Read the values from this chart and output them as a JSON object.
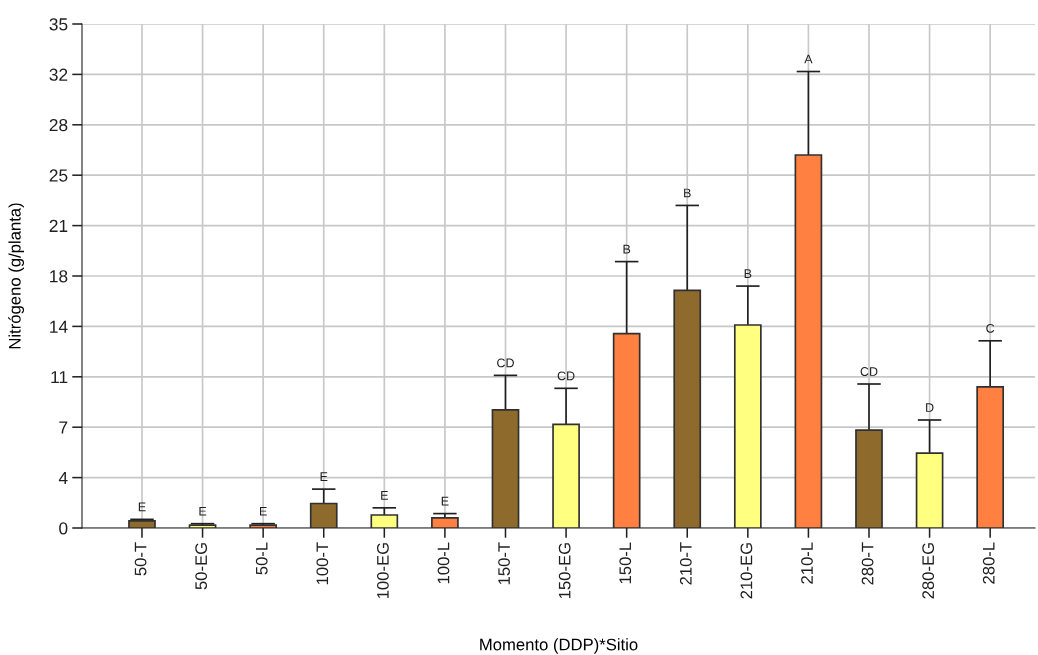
{
  "chart_data": {
    "type": "bar",
    "xlabel": "Momento (DDP)*Sitio",
    "ylabel": "Nitrógeno (g/planta)",
    "categories": [
      "50-T",
      "50-EG",
      "50-L",
      "100-T",
      "100-EG",
      "100-L",
      "150-T",
      "150-EG",
      "150-L",
      "210-T",
      "210-EG",
      "210-L",
      "280-T",
      "280-EG",
      "280-L"
    ],
    "values": [
      0.5,
      0.2,
      0.2,
      1.7,
      0.9,
      0.7,
      8.2,
      7.2,
      13.5,
      16.5,
      14.1,
      25.9,
      6.8,
      5.2,
      9.8
    ],
    "errors": [
      [
        0.5,
        0.6
      ],
      [
        0.2,
        0.3
      ],
      [
        0.2,
        0.3
      ],
      [
        1.7,
        2.7
      ],
      [
        0.9,
        1.4
      ],
      [
        0.7,
        1.0
      ],
      [
        8.2,
        10.6
      ],
      [
        7.2,
        9.7
      ],
      [
        13.5,
        18.5
      ],
      [
        16.5,
        22.4
      ],
      [
        14.1,
        16.8
      ],
      [
        25.9,
        31.7
      ],
      [
        6.8,
        10.0
      ],
      [
        5.2,
        7.5
      ],
      [
        9.8,
        13.0
      ]
    ],
    "colors": [
      "#8f6a2d",
      "#ffff80",
      "#ff8040",
      "#8f6a2d",
      "#ffff80",
      "#ff8040",
      "#8f6a2d",
      "#ffff80",
      "#ff8040",
      "#8f6a2d",
      "#ffff80",
      "#ff8040",
      "#8f6a2d",
      "#ffff80",
      "#ff8040"
    ],
    "ylim": [
      0,
      35
    ],
    "yticks": [
      0,
      {
        "value": 3.5,
        "label": "4"
      },
      7,
      {
        "value": 10.5,
        "label": "11"
      },
      14,
      {
        "value": 17.5,
        "label": "18"
      },
      21,
      {
        "value": 24.5,
        "label": "25"
      },
      28,
      {
        "value": 31.5,
        "label": "32"
      },
      35
    ],
    "grid": true,
    "annotations": [
      {
        "text": "E",
        "x": "50-T",
        "y": 0.6
      },
      {
        "text": "E",
        "x": "50-EG",
        "y": 0.3
      },
      {
        "text": "E",
        "x": "50-L",
        "y": 0.3
      },
      {
        "text": "E",
        "x": "100-T",
        "y": 2.7
      },
      {
        "text": "E",
        "x": "100-EG",
        "y": 1.4
      },
      {
        "text": "E",
        "x": "100-L",
        "y": 1.0
      },
      {
        "text": "CD",
        "x": "150-T",
        "y": 10.6
      },
      {
        "text": "CD",
        "x": "150-EG",
        "y": 9.7
      },
      {
        "text": "B",
        "x": "150-L",
        "y": 18.5
      },
      {
        "text": "B",
        "x": "210-T",
        "y": 22.4
      },
      {
        "text": "B",
        "x": "210-EG",
        "y": 16.8
      },
      {
        "text": "A",
        "x": "210-L",
        "y": 31.7
      },
      {
        "text": "CD",
        "x": "280-T",
        "y": 10.0
      },
      {
        "text": "D",
        "x": "280-EG",
        "y": 7.5
      },
      {
        "text": "C",
        "x": "280-L",
        "y": 13.0
      }
    ]
  }
}
